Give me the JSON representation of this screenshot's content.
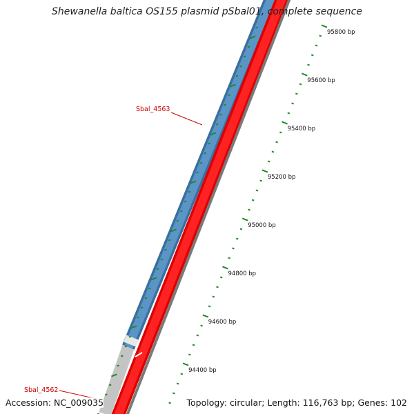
{
  "title": "Shewanella baltica OS155 plasmid pSbal01, complete sequence",
  "footer": {
    "accession": "Accession: NC_009035",
    "summary": "Topology: circular; Length: 116,763 bp; Genes: 102"
  },
  "ruler": {
    "ticks": [
      {
        "label": "95800 bp"
      },
      {
        "label": "95600 bp"
      },
      {
        "label": "95400 bp"
      },
      {
        "label": "95200 bp"
      },
      {
        "label": "95000 bp"
      },
      {
        "label": "94800 bp"
      },
      {
        "label": "94600 bp"
      },
      {
        "label": "94400 bp"
      }
    ]
  },
  "genes": [
    {
      "name": "Sbal_4563"
    },
    {
      "name": "Sbal_4562"
    }
  ],
  "colors": {
    "forward_gene": "#4a83b8",
    "reverse_gene": "#ee1111",
    "backbone": "#808080",
    "ticks": "#228822",
    "gene_label": "#cc0000",
    "uncovered": "#c8c8c8"
  }
}
